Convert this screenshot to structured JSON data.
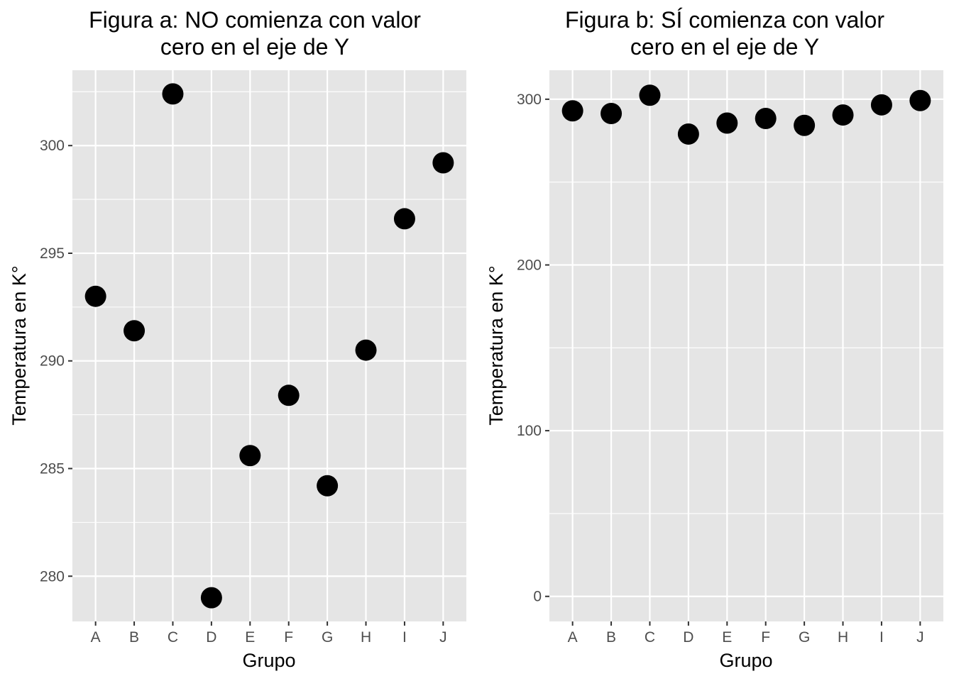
{
  "chart_data": [
    {
      "type": "scatter",
      "title_line1": "Figura a: NO comienza con valor",
      "title_line2": "cero en el eje de Y",
      "xlabel": "Grupo",
      "ylabel": "Temperatura en K°",
      "categories": [
        "A",
        "B",
        "C",
        "D",
        "E",
        "F",
        "G",
        "H",
        "I",
        "J"
      ],
      "values": [
        293.0,
        291.4,
        302.4,
        279.0,
        285.6,
        288.4,
        284.2,
        290.5,
        296.6,
        299.2
      ],
      "ylim": [
        277.9,
        303.5
      ],
      "yticks": [
        280,
        285,
        290,
        295,
        300
      ],
      "ytick_labels": [
        "280",
        "285",
        "290",
        "295",
        "300"
      ],
      "grid": true,
      "colors": {
        "panel": "#e5e5e5",
        "grid": "#ffffff",
        "point": "#000000",
        "tick": "#4d4d4d"
      }
    },
    {
      "type": "scatter",
      "title_line1": "Figura b: SÍ comienza con valor",
      "title_line2": "cero en el eje de Y",
      "xlabel": "Grupo",
      "ylabel": "Temperatura en K°",
      "categories": [
        "A",
        "B",
        "C",
        "D",
        "E",
        "F",
        "G",
        "H",
        "I",
        "J"
      ],
      "values": [
        293.0,
        291.4,
        302.4,
        279.0,
        285.6,
        288.4,
        284.2,
        290.5,
        296.6,
        299.2
      ],
      "ylim": [
        -15.1,
        317.5
      ],
      "yticks": [
        0,
        100,
        200,
        300
      ],
      "ytick_labels": [
        "0",
        "100",
        "200",
        "300"
      ],
      "grid": true,
      "colors": {
        "panel": "#e5e5e5",
        "grid": "#ffffff",
        "point": "#000000",
        "tick": "#4d4d4d"
      }
    }
  ]
}
